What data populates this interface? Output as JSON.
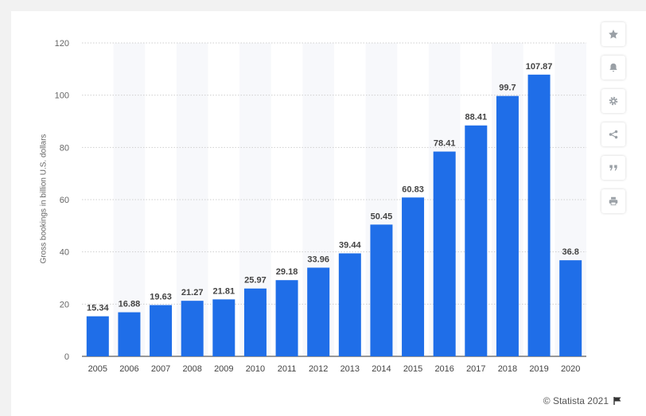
{
  "chart_data": {
    "type": "bar",
    "categories": [
      "2005",
      "2006",
      "2007",
      "2008",
      "2009",
      "2010",
      "2011",
      "2012",
      "2013",
      "2014",
      "2015",
      "2016",
      "2017",
      "2018",
      "2019",
      "2020"
    ],
    "values": [
      15.34,
      16.88,
      19.63,
      21.27,
      21.81,
      25.97,
      29.18,
      33.96,
      39.44,
      50.45,
      60.83,
      78.41,
      88.41,
      99.7,
      107.87,
      36.8
    ],
    "ylabel": "Gross bookings in billion U.S. dollars",
    "xlabel": "",
    "ylim": [
      0,
      120
    ],
    "yticks": [
      0,
      20,
      40,
      60,
      80,
      100,
      120
    ],
    "grid": true,
    "bar_color": "#1f6ee8",
    "band_color": "#f7f8fb"
  },
  "toolbar": {
    "buttons": [
      "star-icon",
      "bell-icon",
      "gear-icon",
      "share-icon",
      "quote-icon",
      "print-icon"
    ]
  },
  "credit": {
    "text": "© Statista 2021",
    "icon": "flag-icon"
  }
}
